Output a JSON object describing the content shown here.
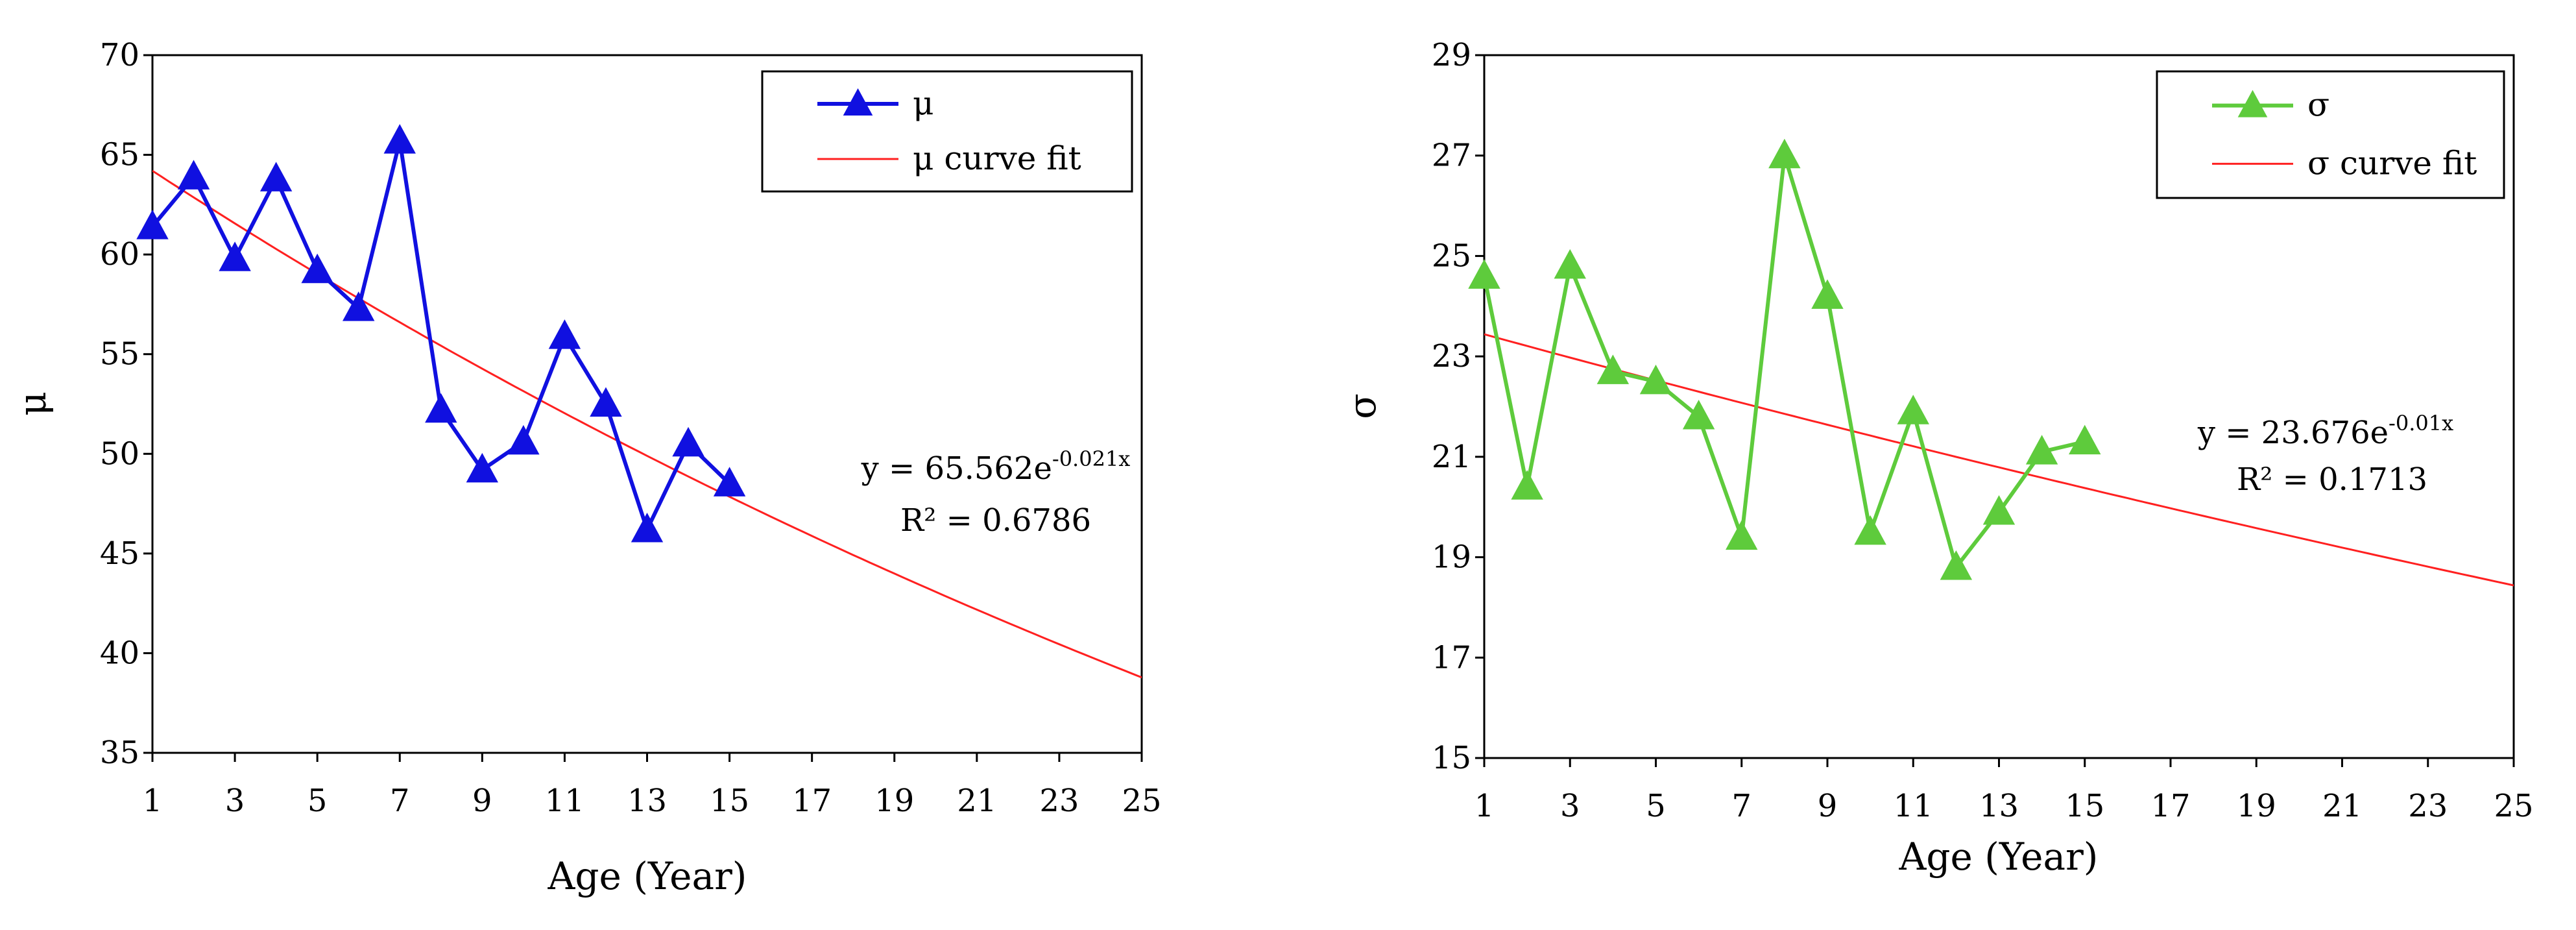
{
  "chart_data": [
    {
      "type": "line",
      "xlabel": "Age (Year)",
      "ylabel": "μ",
      "xlim": [
        1,
        25
      ],
      "ylim": [
        35,
        70
      ],
      "xticks": [
        1,
        3,
        5,
        7,
        9,
        11,
        13,
        15,
        17,
        19,
        21,
        23,
        25
      ],
      "yticks": [
        35,
        40,
        45,
        50,
        55,
        60,
        65,
        70
      ],
      "grid": false,
      "legend_position": "top-right",
      "series": [
        {
          "name": "μ",
          "color": "#1010e0",
          "marker": "triangle",
          "x": [
            1,
            2,
            3,
            4,
            5,
            6,
            7,
            8,
            9,
            10,
            11,
            12,
            13,
            14,
            15
          ],
          "values": [
            61.4,
            63.9,
            59.8,
            63.8,
            59.2,
            57.3,
            65.7,
            52.2,
            49.2,
            50.6,
            55.9,
            52.5,
            46.2,
            50.5,
            48.5
          ]
        },
        {
          "name": "μ curve fit",
          "color": "#ff2020",
          "fit": {
            "a": 65.562,
            "b": -0.021,
            "x_range": [
              1,
              25
            ]
          }
        }
      ],
      "annotation": {
        "equation_prefix": "y = 65.562e",
        "equation_exponent": "-0.021x",
        "r2": "R² = 0.6786"
      }
    },
    {
      "type": "line",
      "xlabel": "Age (Year)",
      "ylabel": "σ",
      "xlim": [
        1,
        25
      ],
      "ylim": [
        15,
        29
      ],
      "xticks": [
        1,
        3,
        5,
        7,
        9,
        11,
        13,
        15,
        17,
        19,
        21,
        23,
        25
      ],
      "yticks": [
        15,
        17,
        19,
        21,
        23,
        25,
        27,
        29
      ],
      "grid": false,
      "legend_position": "top-right",
      "series": [
        {
          "name": "σ",
          "color": "#5ecb3c",
          "marker": "triangle",
          "x": [
            1,
            2,
            3,
            4,
            5,
            6,
            7,
            8,
            9,
            10,
            11,
            12,
            13,
            14,
            15
          ],
          "values": [
            24.6,
            20.4,
            24.8,
            22.7,
            22.5,
            21.8,
            19.4,
            27.0,
            24.2,
            19.5,
            21.9,
            18.8,
            19.9,
            21.1,
            21.3
          ]
        },
        {
          "name": "σ curve fit",
          "color": "#ff2020",
          "fit": {
            "a": 23.676,
            "b": -0.01,
            "x_range": [
              1,
              25
            ]
          }
        }
      ],
      "annotation": {
        "equation_prefix": "y = 23.676e",
        "equation_exponent": "-0.01x",
        "r2": "R² = 0.1713"
      }
    }
  ]
}
